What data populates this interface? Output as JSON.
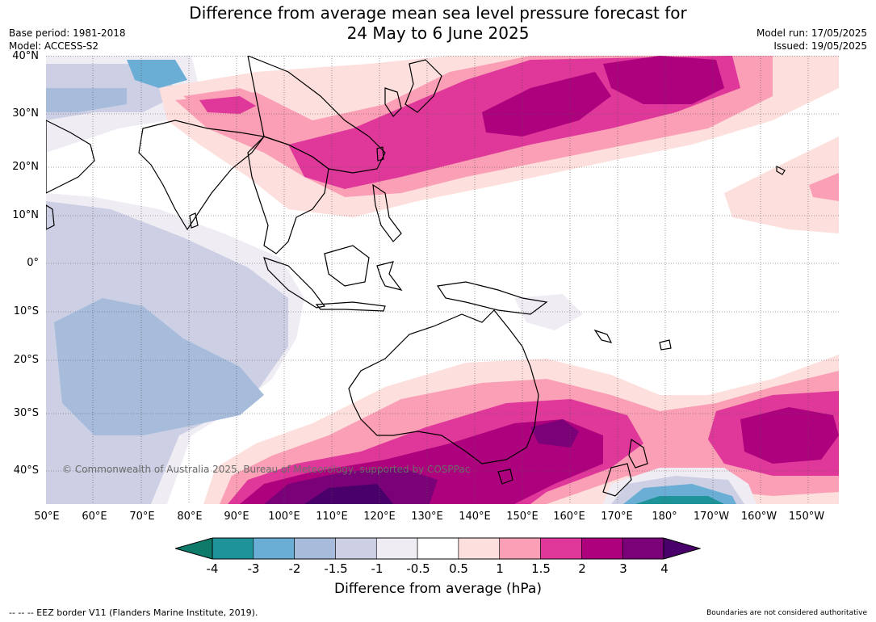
{
  "header": {
    "title_line1": "Difference from average mean sea level pressure forecast for",
    "title_line2": "24 May to 6 June 2025",
    "base_period": "Base period: 1981-2018",
    "model": "Model: ACCESS-S2",
    "model_run": "Model run: 17/05/2025",
    "issued": "Issued: 19/05/2025"
  },
  "map": {
    "lat_labels": [
      "40°N",
      "30°N",
      "20°N",
      "10°N",
      "0°",
      "10°S",
      "20°S",
      "30°S",
      "40°S"
    ],
    "lon_labels": [
      "50°E",
      "60°E",
      "70°E",
      "80°E",
      "90°E",
      "100°E",
      "110°E",
      "120°E",
      "130°E",
      "140°E",
      "150°E",
      "160°E",
      "170°E",
      "180°",
      "170°W",
      "160°W",
      "150°W"
    ],
    "copyright": "© Commonwealth of Australia 2025, Bureau of Meteorology, supported by COSPPac"
  },
  "colorbar": {
    "ticks": [
      "-4",
      "-3",
      "-2",
      "-1.5",
      "-1",
      "-0.5",
      "0.5",
      "1",
      "1.5",
      "2",
      "3",
      "4"
    ],
    "colors": [
      "#0d7a6a",
      "#1f9498",
      "#6aaed6",
      "#a7bcdb",
      "#cdd0e4",
      "#efecf4",
      "#ffffff",
      "#fde0dd",
      "#fa9fb5",
      "#e0389a",
      "#ae017e",
      "#7a0177",
      "#49006a"
    ],
    "title": "Difference from average (hPa)"
  },
  "footer": {
    "eez_note": "--  --  -- EEZ border V11 (Flanders Marine Institute, 2019).",
    "disclaimer": "Boundaries are not considered authoritative"
  }
}
